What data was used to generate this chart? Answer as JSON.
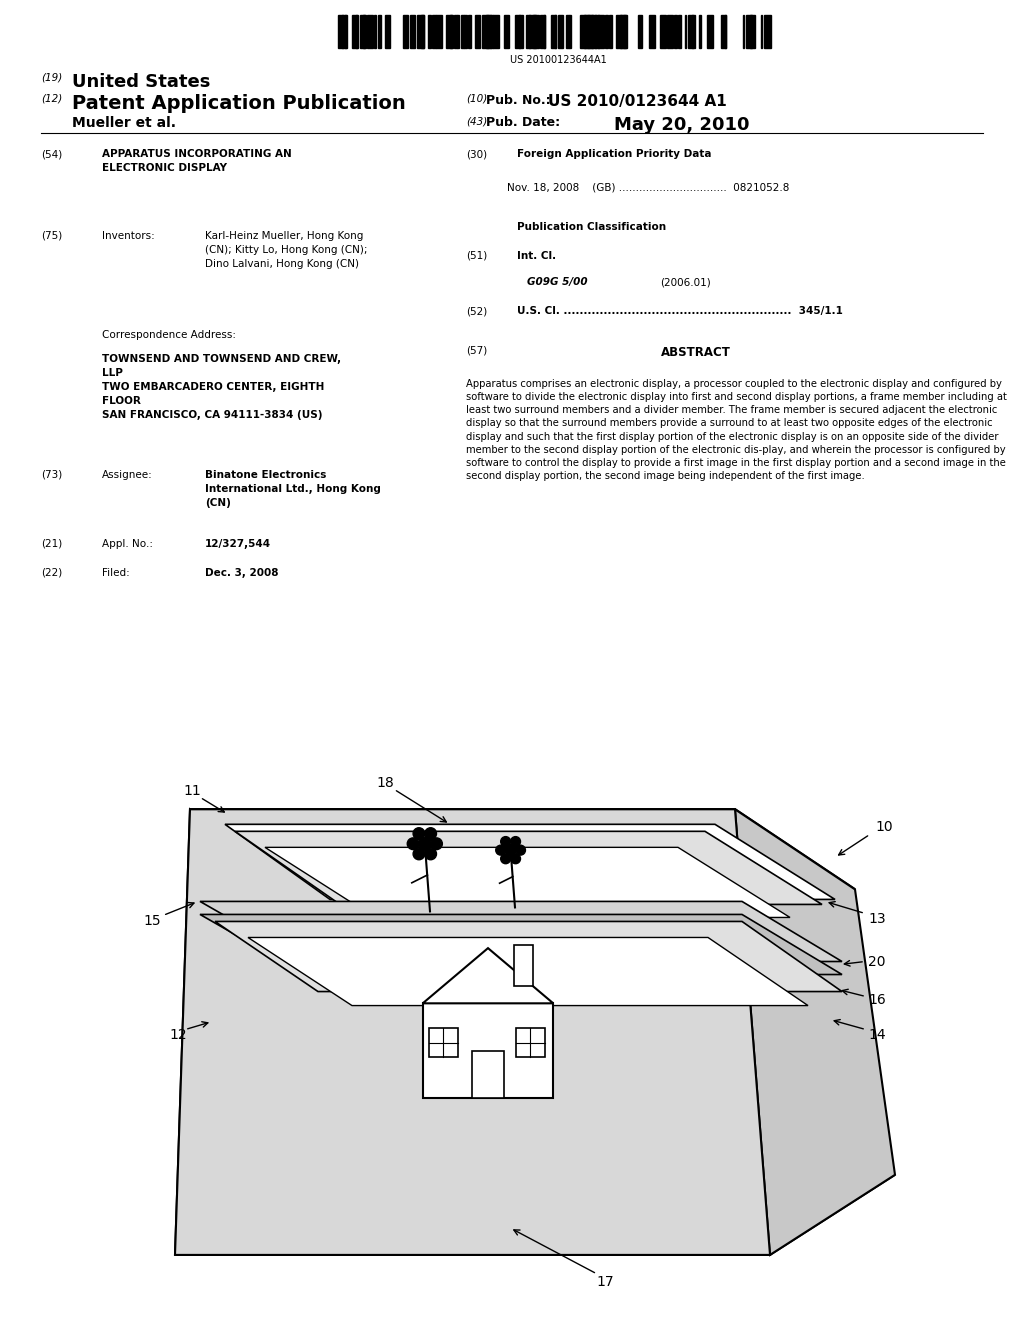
{
  "background_color": "#ffffff",
  "barcode_text": "US 20100123644A1",
  "header": {
    "number_19": "(19)",
    "us_text": "United States",
    "number_12": "(12)",
    "pat_app_pub": "Patent Application Publication",
    "number_10": "(10)",
    "pub_no_label": "Pub. No.:",
    "pub_no_value": "US 2010/0123644 A1",
    "inventor_name": "Mueller et al.",
    "number_43": "(43)",
    "pub_date_label": "Pub. Date:",
    "pub_date_value": "May 20, 2010"
  },
  "abstract_text": "Apparatus comprises an electronic display, a processor coupled to the electronic display and configured by software to divide the electronic display into first and second display portions, a frame member including at least two surround members and a divider member. The frame member is secured adjacent the electronic display so that the surround members provide a surround to at least two opposite edges of the electronic display and such that the first display portion of the electronic display is on an opposite side of the divider member to the second display portion of the electronic dis-play, and wherein the processor is configured by software to control the display to provide a first image in the first display portion and a second image in the second display portion, the second image being independent of the first image."
}
